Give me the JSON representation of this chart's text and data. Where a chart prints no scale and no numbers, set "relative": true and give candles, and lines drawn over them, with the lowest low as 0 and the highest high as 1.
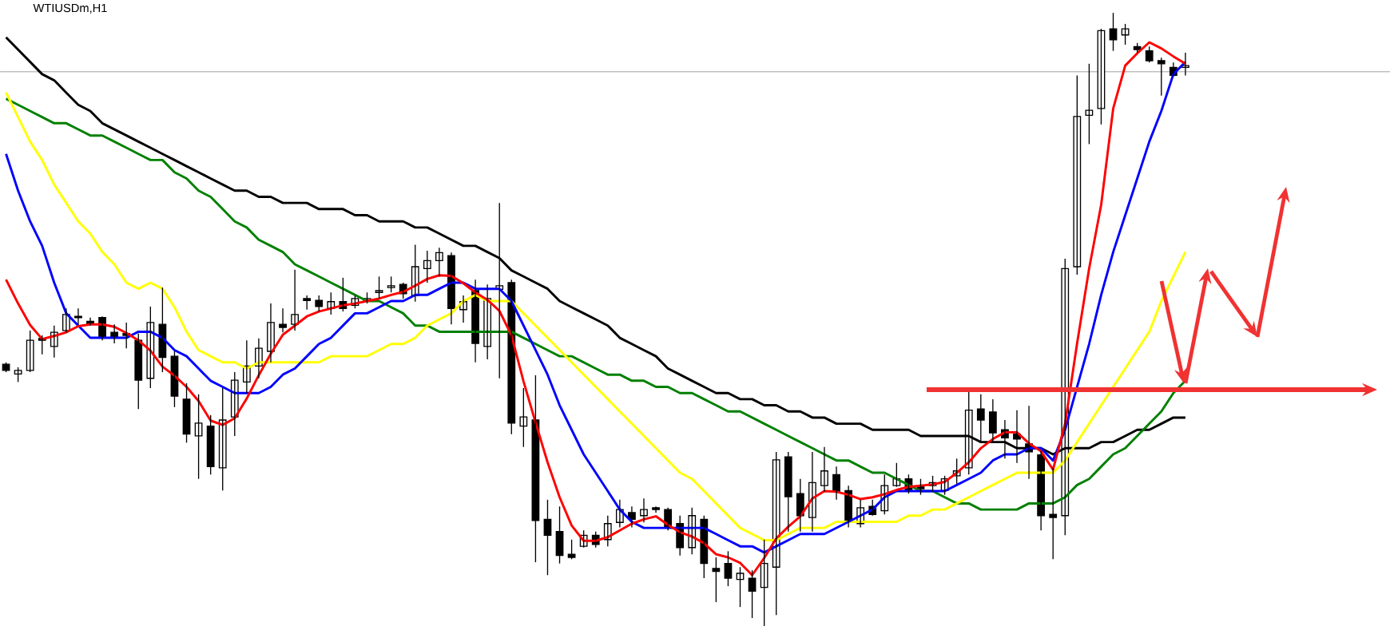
{
  "chart_data": {
    "type": "candlestick",
    "title": "WTIUSDm,H1",
    "relative": true,
    "categories": [
      null,
      null,
      null,
      null,
      null,
      null,
      null,
      null,
      null,
      null,
      null,
      null,
      null,
      null,
      null,
      null,
      null,
      null,
      null,
      null,
      null,
      null,
      null,
      null,
      null,
      null,
      null,
      null,
      null,
      null,
      null,
      null,
      null,
      null,
      null,
      null,
      null,
      null,
      null,
      null,
      null,
      null,
      null,
      null,
      null,
      null,
      null,
      null,
      null,
      null,
      null,
      null,
      null,
      null,
      null,
      null,
      null,
      null,
      null,
      null,
      null,
      null,
      null,
      null,
      null,
      null,
      null,
      null,
      null,
      null,
      null,
      null,
      null,
      null,
      null,
      null,
      null,
      null,
      null,
      null,
      null,
      null,
      null,
      null,
      null,
      null,
      null,
      null,
      null,
      null,
      null,
      null,
      null,
      null,
      null,
      null,
      null,
      null,
      null
    ],
    "ohlc": [
      [
        0.427,
        0.43,
        0.414,
        0.417
      ],
      [
        0.411,
        0.422,
        0.398,
        0.417
      ],
      [
        0.417,
        0.482,
        0.414,
        0.466
      ],
      [
        0.469,
        0.474,
        0.443,
        0.466
      ],
      [
        0.456,
        0.49,
        0.438,
        0.479
      ],
      [
        0.482,
        0.518,
        0.479,
        0.508
      ],
      [
        0.505,
        0.518,
        0.492,
        0.503
      ],
      [
        0.497,
        0.503,
        0.49,
        0.492
      ],
      [
        0.503,
        0.505,
        0.466,
        0.471
      ],
      [
        0.479,
        0.492,
        0.461,
        0.471
      ],
      [
        0.477,
        0.495,
        0.453,
        0.474
      ],
      [
        0.466,
        0.477,
        0.354,
        0.401
      ],
      [
        0.404,
        0.521,
        0.388,
        0.495
      ],
      [
        0.492,
        0.552,
        0.414,
        0.438
      ],
      [
        0.44,
        0.448,
        0.357,
        0.375
      ],
      [
        0.37,
        0.396,
        0.299,
        0.313
      ],
      [
        0.31,
        0.378,
        0.24,
        0.331
      ],
      [
        0.326,
        0.344,
        0.247,
        0.26
      ],
      [
        0.258,
        0.388,
        0.221,
        0.336
      ],
      [
        0.341,
        0.414,
        0.31,
        0.401
      ],
      [
        0.398,
        0.466,
        0.38,
        0.424
      ],
      [
        0.424,
        0.469,
        0.404,
        0.453
      ],
      [
        0.448,
        0.526,
        0.43,
        0.495
      ],
      [
        0.492,
        0.518,
        0.479,
        0.487
      ],
      [
        0.492,
        0.581,
        0.482,
        0.508
      ],
      [
        0.534,
        0.539,
        0.516,
        0.531
      ],
      [
        0.531,
        0.539,
        0.513,
        0.521
      ],
      [
        0.518,
        0.544,
        0.508,
        0.529
      ],
      [
        0.529,
        0.568,
        0.513,
        0.518
      ],
      [
        0.523,
        0.539,
        0.518,
        0.534
      ],
      [
        0.531,
        0.544,
        0.526,
        0.534
      ],
      [
        0.544,
        0.57,
        0.534,
        0.547
      ],
      [
        0.552,
        0.57,
        0.544,
        0.555
      ],
      [
        0.557,
        0.56,
        0.534,
        0.542
      ],
      [
        0.539,
        0.622,
        0.529,
        0.586
      ],
      [
        0.583,
        0.612,
        0.56,
        0.596
      ],
      [
        0.596,
        0.617,
        0.57,
        0.609
      ],
      [
        0.604,
        0.609,
        0.492,
        0.518
      ],
      [
        0.516,
        0.539,
        0.495,
        0.529
      ],
      [
        0.547,
        0.565,
        0.43,
        0.461
      ],
      [
        0.456,
        0.557,
        0.435,
        0.534
      ],
      [
        0.549,
        0.69,
        0.404,
        0.555
      ],
      [
        0.56,
        0.565,
        0.313,
        0.331
      ],
      [
        0.326,
        0.388,
        0.292,
        0.341
      ],
      [
        0.336,
        0.409,
        0.104,
        0.172
      ],
      [
        0.174,
        0.206,
        0.083,
        0.148
      ],
      [
        0.154,
        0.195,
        0.102,
        0.115
      ],
      [
        0.117,
        0.141,
        0.109,
        0.112
      ],
      [
        0.13,
        0.156,
        0.128,
        0.148
      ],
      [
        0.148,
        0.154,
        0.128,
        0.133
      ],
      [
        0.141,
        0.18,
        0.13,
        0.167
      ],
      [
        0.169,
        0.206,
        0.161,
        0.19
      ],
      [
        0.185,
        0.195,
        0.161,
        0.174
      ],
      [
        0.18,
        0.208,
        0.169,
        0.19
      ],
      [
        0.193,
        0.195,
        0.185,
        0.19
      ],
      [
        0.19,
        0.193,
        0.156,
        0.161
      ],
      [
        0.167,
        0.18,
        0.115,
        0.128
      ],
      [
        0.128,
        0.193,
        0.117,
        0.18
      ],
      [
        0.174,
        0.18,
        0.078,
        0.102
      ],
      [
        0.094,
        0.112,
        0.039,
        0.089
      ],
      [
        0.102,
        0.122,
        0.065,
        0.078
      ],
      [
        0.076,
        0.096,
        0.031,
        0.086
      ],
      [
        0.078,
        0.091,
        0.013,
        0.057
      ],
      [
        0.063,
        0.141,
        0,
        0.102
      ],
      [
        0.096,
        0.284,
        0.018,
        0.271
      ],
      [
        0.276,
        0.284,
        0.154,
        0.211
      ],
      [
        0.216,
        0.24,
        0.154,
        0.18
      ],
      [
        0.177,
        0.284,
        0.154,
        0.234
      ],
      [
        0.229,
        0.292,
        0.219,
        0.253
      ],
      [
        0.247,
        0.26,
        0.206,
        0.219
      ],
      [
        0.221,
        0.229,
        0.161,
        0.169
      ],
      [
        0.167,
        0.206,
        0.161,
        0.193
      ],
      [
        0.195,
        0.206,
        0.18,
        0.182
      ],
      [
        0.188,
        0.247,
        0.182,
        0.229
      ],
      [
        0.229,
        0.266,
        0.227,
        0.24
      ],
      [
        0.24,
        0.247,
        0.216,
        0.221
      ],
      [
        0.227,
        0.24,
        0.214,
        0.224
      ],
      [
        0.229,
        0.245,
        0.219,
        0.234
      ],
      [
        0.221,
        0.245,
        0.214,
        0.24
      ],
      [
        0.245,
        0.273,
        0.232,
        0.253
      ],
      [
        0.258,
        0.383,
        0.247,
        0.352
      ],
      [
        0.354,
        0.378,
        0.299,
        0.336
      ],
      [
        0.349,
        0.37,
        0.299,
        0.315
      ],
      [
        0.32,
        0.336,
        0.273,
        0.307
      ],
      [
        0.313,
        0.352,
        0.266,
        0.305
      ],
      [
        0.297,
        0.359,
        0.24,
        0.284
      ],
      [
        0.279,
        0.286,
        0.156,
        0.18
      ],
      [
        0.182,
        0.258,
        0.109,
        0.177
      ],
      [
        0.18,
        0.599,
        0.148,
        0.583
      ],
      [
        0.586,
        0.898,
        0.573,
        0.831
      ],
      [
        0.833,
        0.917,
        0.786,
        0.841
      ],
      [
        0.844,
        0.974,
        0.818,
        0.971
      ],
      [
        0.974,
        1,
        0.938,
        0.956
      ],
      [
        0.964,
        0.982,
        0.948,
        0.974
      ],
      [
        0.945,
        0.951,
        0.935,
        0.94
      ],
      [
        0.938,
        0.945,
        0.919,
        0.922
      ],
      [
        0.922,
        0.927,
        0.865,
        0.917
      ],
      [
        0.911,
        0.919,
        0.896,
        0.898
      ],
      [
        0.911,
        0.935,
        0.898,
        0.914
      ]
    ],
    "series": [
      {
        "type": "line",
        "color": "#000000",
        "values": [
          0.96,
          0.94,
          0.92,
          0.9,
          0.89,
          0.87,
          0.85,
          0.84,
          0.82,
          0.81,
          0.8,
          0.79,
          0.78,
          0.77,
          0.76,
          0.75,
          0.74,
          0.73,
          0.72,
          0.71,
          0.71,
          0.7,
          0.7,
          0.69,
          0.69,
          0.69,
          0.68,
          0.68,
          0.68,
          0.67,
          0.67,
          0.66,
          0.66,
          0.66,
          0.65,
          0.65,
          0.64,
          0.63,
          0.62,
          0.62,
          0.61,
          0.6,
          0.58,
          0.57,
          0.56,
          0.55,
          0.53,
          0.52,
          0.51,
          0.5,
          0.49,
          0.47,
          0.46,
          0.45,
          0.44,
          0.42,
          0.41,
          0.4,
          0.39,
          0.38,
          0.38,
          0.37,
          0.37,
          0.36,
          0.36,
          0.35,
          0.35,
          0.34,
          0.34,
          0.33,
          0.33,
          0.33,
          0.32,
          0.32,
          0.32,
          0.32,
          0.31,
          0.31,
          0.31,
          0.31,
          0.31,
          0.3,
          0.3,
          0.3,
          0.29,
          0.29,
          0.29,
          0.28,
          0.29,
          0.29,
          0.29,
          0.3,
          0.3,
          0.31,
          0.32,
          0.32,
          0.33,
          0.34,
          0.34
        ]
      },
      {
        "type": "line",
        "color": "#008000",
        "values": [
          0.86,
          0.85,
          0.84,
          0.83,
          0.82,
          0.82,
          0.81,
          0.8,
          0.8,
          0.79,
          0.78,
          0.77,
          0.76,
          0.76,
          0.74,
          0.73,
          0.71,
          0.7,
          0.68,
          0.66,
          0.65,
          0.63,
          0.62,
          0.61,
          0.59,
          0.58,
          0.57,
          0.56,
          0.55,
          0.54,
          0.53,
          0.53,
          0.52,
          0.51,
          0.49,
          0.49,
          0.48,
          0.48,
          0.48,
          0.48,
          0.48,
          0.48,
          0.48,
          0.47,
          0.46,
          0.45,
          0.44,
          0.44,
          0.43,
          0.42,
          0.41,
          0.41,
          0.4,
          0.4,
          0.39,
          0.39,
          0.38,
          0.38,
          0.37,
          0.36,
          0.35,
          0.35,
          0.34,
          0.33,
          0.32,
          0.31,
          0.3,
          0.29,
          0.28,
          0.27,
          0.27,
          0.26,
          0.25,
          0.25,
          0.24,
          0.23,
          0.22,
          0.22,
          0.21,
          0.2,
          0.2,
          0.19,
          0.19,
          0.19,
          0.19,
          0.2,
          0.2,
          0.2,
          0.21,
          0.23,
          0.24,
          0.26,
          0.28,
          0.29,
          0.31,
          0.33,
          0.35,
          0.38,
          0.4
        ]
      },
      {
        "type": "line",
        "color": "#ffff00",
        "values": [
          0.87,
          0.83,
          0.79,
          0.76,
          0.72,
          0.69,
          0.66,
          0.64,
          0.61,
          0.59,
          0.56,
          0.55,
          0.56,
          0.55,
          0.52,
          0.48,
          0.45,
          0.44,
          0.43,
          0.43,
          0.42,
          0.43,
          0.43,
          0.43,
          0.43,
          0.43,
          0.43,
          0.44,
          0.44,
          0.44,
          0.44,
          0.45,
          0.46,
          0.46,
          0.47,
          0.49,
          0.5,
          0.51,
          0.53,
          0.54,
          0.53,
          0.53,
          0.53,
          0.51,
          0.49,
          0.47,
          0.45,
          0.43,
          0.41,
          0.39,
          0.37,
          0.35,
          0.33,
          0.31,
          0.29,
          0.27,
          0.25,
          0.24,
          0.22,
          0.2,
          0.18,
          0.16,
          0.15,
          0.14,
          0.14,
          0.15,
          0.16,
          0.16,
          0.16,
          0.17,
          0.17,
          0.17,
          0.17,
          0.17,
          0.17,
          0.18,
          0.18,
          0.19,
          0.19,
          0.2,
          0.21,
          0.22,
          0.23,
          0.24,
          0.25,
          0.25,
          0.25,
          0.25,
          0.27,
          0.3,
          0.33,
          0.36,
          0.39,
          0.42,
          0.45,
          0.48,
          0.53,
          0.57,
          0.61
        ]
      },
      {
        "type": "line",
        "color": "#0000ff",
        "values": [
          0.77,
          0.71,
          0.66,
          0.62,
          0.56,
          0.51,
          0.49,
          0.47,
          0.47,
          0.47,
          0.47,
          0.48,
          0.48,
          0.47,
          0.45,
          0.44,
          0.42,
          0.4,
          0.39,
          0.38,
          0.38,
          0.38,
          0.39,
          0.41,
          0.42,
          0.44,
          0.46,
          0.47,
          0.49,
          0.51,
          0.51,
          0.52,
          0.53,
          0.53,
          0.54,
          0.54,
          0.55,
          0.56,
          0.56,
          0.55,
          0.55,
          0.55,
          0.53,
          0.49,
          0.45,
          0.41,
          0.36,
          0.32,
          0.28,
          0.25,
          0.22,
          0.19,
          0.17,
          0.16,
          0.16,
          0.16,
          0.16,
          0.16,
          0.16,
          0.15,
          0.14,
          0.13,
          0.13,
          0.12,
          0.13,
          0.14,
          0.15,
          0.15,
          0.15,
          0.16,
          0.17,
          0.18,
          0.19,
          0.21,
          0.22,
          0.22,
          0.22,
          0.22,
          0.22,
          0.23,
          0.24,
          0.25,
          0.27,
          0.28,
          0.28,
          0.29,
          0.29,
          0.27,
          0.32,
          0.39,
          0.46,
          0.54,
          0.61,
          0.67,
          0.73,
          0.79,
          0.84,
          0.9,
          0.92
        ]
      },
      {
        "type": "line",
        "color": "#ff0000",
        "values": [
          0.565,
          0.526,
          0.491,
          0.468,
          0.473,
          0.479,
          0.489,
          0.492,
          0.492,
          0.488,
          0.478,
          0.466,
          0.449,
          0.423,
          0.408,
          0.39,
          0.367,
          0.335,
          0.328,
          0.339,
          0.371,
          0.409,
          0.444,
          0.475,
          0.49,
          0.505,
          0.513,
          0.518,
          0.523,
          0.526,
          0.53,
          0.534,
          0.54,
          0.545,
          0.555,
          0.566,
          0.572,
          0.571,
          0.559,
          0.544,
          0.532,
          0.514,
          0.474,
          0.399,
          0.332,
          0.267,
          0.21,
          0.164,
          0.139,
          0.139,
          0.145,
          0.156,
          0.167,
          0.174,
          0.179,
          0.165,
          0.153,
          0.146,
          0.135,
          0.117,
          0.112,
          0.103,
          0.083,
          0.111,
          0.143,
          0.162,
          0.179,
          0.208,
          0.22,
          0.219,
          0.214,
          0.207,
          0.21,
          0.215,
          0.222,
          0.227,
          0.229,
          0.231,
          0.235,
          0.25,
          0.267,
          0.29,
          0.305,
          0.316,
          0.316,
          0.298,
          0.285,
          0.255,
          0.33,
          0.461,
          0.583,
          0.687,
          0.844,
          0.914,
          0.934,
          0.952,
          0.942,
          0.929,
          0.917
        ]
      }
    ],
    "ref_lines": [
      {
        "axis": "y",
        "value": 0.904,
        "color": "#c0c0c0"
      }
    ]
  }
}
